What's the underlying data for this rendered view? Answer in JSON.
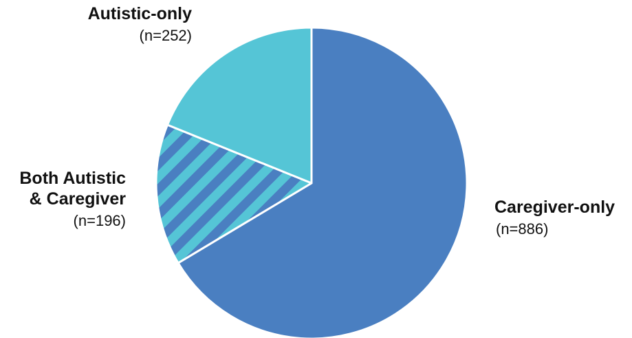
{
  "chart_data": {
    "type": "pie",
    "title": "",
    "start_angle_deg": 0,
    "direction": "clockwise",
    "slices": [
      {
        "name": "Caregiver-only",
        "label_lines": [
          "Caregiver-only"
        ],
        "count_label": "(n=886)",
        "value": 886,
        "color": "#4a7fc1",
        "pattern": "solid"
      },
      {
        "name": "Both Autistic & Caregiver",
        "label_lines": [
          "Both Autistic",
          "& Caregiver"
        ],
        "count_label": "(n=196)",
        "value": 196,
        "color": "#4a7fc1",
        "stripe_color": "#55c5d6",
        "pattern": "diagonal-stripes"
      },
      {
        "name": "Autistic-only",
        "label_lines": [
          "Autistic-only"
        ],
        "count_label": "(n=252)",
        "value": 252,
        "color": "#55c5d6",
        "pattern": "solid"
      }
    ],
    "legend": "none (direct labels)"
  }
}
